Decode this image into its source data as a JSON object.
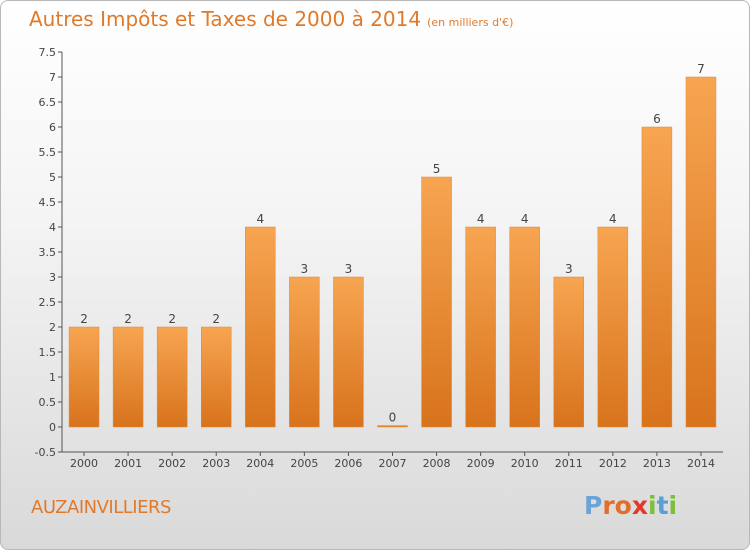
{
  "header": {
    "title": "Autres Impôts et Taxes de 2000 à 2014",
    "unit": "(en milliers d'€)"
  },
  "footer": {
    "commune": "AUZAINVILLIERS",
    "logo_letters": [
      "P",
      "r",
      "o",
      "x",
      "i",
      "t",
      "i"
    ],
    "logo_colors": [
      "#6aa3d8",
      "#e46d2a",
      "#e46d2a",
      "#e03a2a",
      "#7bbf3a",
      "#5a9fd4",
      "#7bbf3a"
    ]
  },
  "chart_data": {
    "type": "bar",
    "title": "Autres Impôts et Taxes de 2000 à 2014",
    "subtitle": "(en milliers d'€)",
    "categories": [
      "2000",
      "2001",
      "2002",
      "2003",
      "2004",
      "2005",
      "2006",
      "2007",
      "2008",
      "2009",
      "2010",
      "2011",
      "2012",
      "2013",
      "2014"
    ],
    "values": [
      2,
      2,
      2,
      2,
      4,
      3,
      3,
      0,
      5,
      4,
      4,
      3,
      4,
      6,
      7
    ],
    "data_labels": [
      "2",
      "2",
      "2",
      "2",
      "4",
      "3",
      "3",
      "0",
      "5",
      "4",
      "4",
      "3",
      "4",
      "6",
      "7"
    ],
    "ylim": [
      -0.5,
      7.5
    ],
    "yticks": [
      -0.5,
      0,
      0.5,
      1,
      1.5,
      2,
      2.5,
      3,
      3.5,
      4,
      4.5,
      5,
      5.5,
      6,
      6.5,
      7,
      7.5
    ],
    "ytick_labels": [
      "-0.5",
      "0",
      "0.5",
      "1",
      "1.5",
      "2",
      "2.5",
      "3",
      "3.5",
      "4",
      "4.5",
      "5",
      "5.5",
      "6",
      "6.5",
      "7",
      "7.5"
    ],
    "bar_color": "#f0923a",
    "grid": false,
    "legend": "none"
  }
}
